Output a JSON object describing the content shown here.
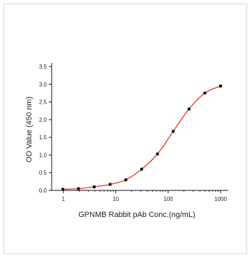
{
  "chart_data": {
    "type": "scatter",
    "title": "",
    "xlabel": "GPNMB Rabbit pAb Conc.(ng/mL)",
    "ylabel": "OD Value (450 nm)",
    "x_scale": "log",
    "xlim": [
      0.6,
      1400
    ],
    "ylim": [
      0,
      3.6
    ],
    "x_ticks": [
      1,
      10,
      100,
      1000
    ],
    "x_tick_labels": [
      "1",
      "10",
      "100",
      "1000"
    ],
    "y_ticks": [
      0,
      0.5,
      1.0,
      1.5,
      2.0,
      2.5,
      3.0,
      3.5
    ],
    "y_tick_labels": [
      "0.0",
      "0.5",
      "1.0",
      "1.5",
      "2.0",
      "2.5",
      "3.0",
      "3.5"
    ],
    "grid": false,
    "legend": "none",
    "series": [
      {
        "x": [
          0.98,
          1.95,
          3.9,
          7.8,
          15.6,
          31.25,
          62.5,
          125,
          250,
          500,
          1000
        ],
        "y": [
          0.03,
          0.05,
          0.1,
          0.17,
          0.3,
          0.6,
          1.03,
          1.67,
          2.3,
          2.75,
          2.95
        ],
        "marker": "square",
        "marker_color": "#111111",
        "fit_line_color": "#e8302a"
      }
    ]
  }
}
